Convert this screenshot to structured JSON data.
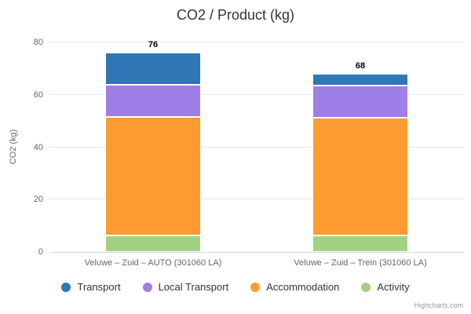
{
  "credit": "Highcharts.com",
  "chart_data": {
    "type": "bar",
    "stacked": true,
    "title": "CO2 / Product (kg)",
    "xlabel": "",
    "ylabel": "CO2 (kg)",
    "ylim": [
      0,
      80
    ],
    "yticks": [
      0,
      20,
      40,
      60,
      80
    ],
    "grid": true,
    "legend_position": "bottom",
    "legend_marker": "circle",
    "categories": [
      "Veluwe – Zuid – AUTO (301060 LA)",
      "Veluwe – Zuid – Trein (301060 LA)"
    ],
    "series": [
      {
        "name": "Transport",
        "color": "#2f77b5",
        "values": [
          12,
          4
        ]
      },
      {
        "name": "Local Transport",
        "color": "#a07ee8",
        "values": [
          12,
          12
        ]
      },
      {
        "name": "Accommodation",
        "color": "#fb9b32",
        "values": [
          46,
          46
        ]
      },
      {
        "name": "Activity",
        "color": "#a3d184",
        "values": [
          6,
          6
        ]
      }
    ],
    "stack_totals": [
      76,
      68
    ],
    "stack_label_color": "#000000",
    "gridline_color": "#e6e6e6",
    "axis_line_color": "#ccd6eb",
    "axis_text_color": "#666666",
    "title_color": "#333333",
    "legend_text_color": "#333333"
  }
}
